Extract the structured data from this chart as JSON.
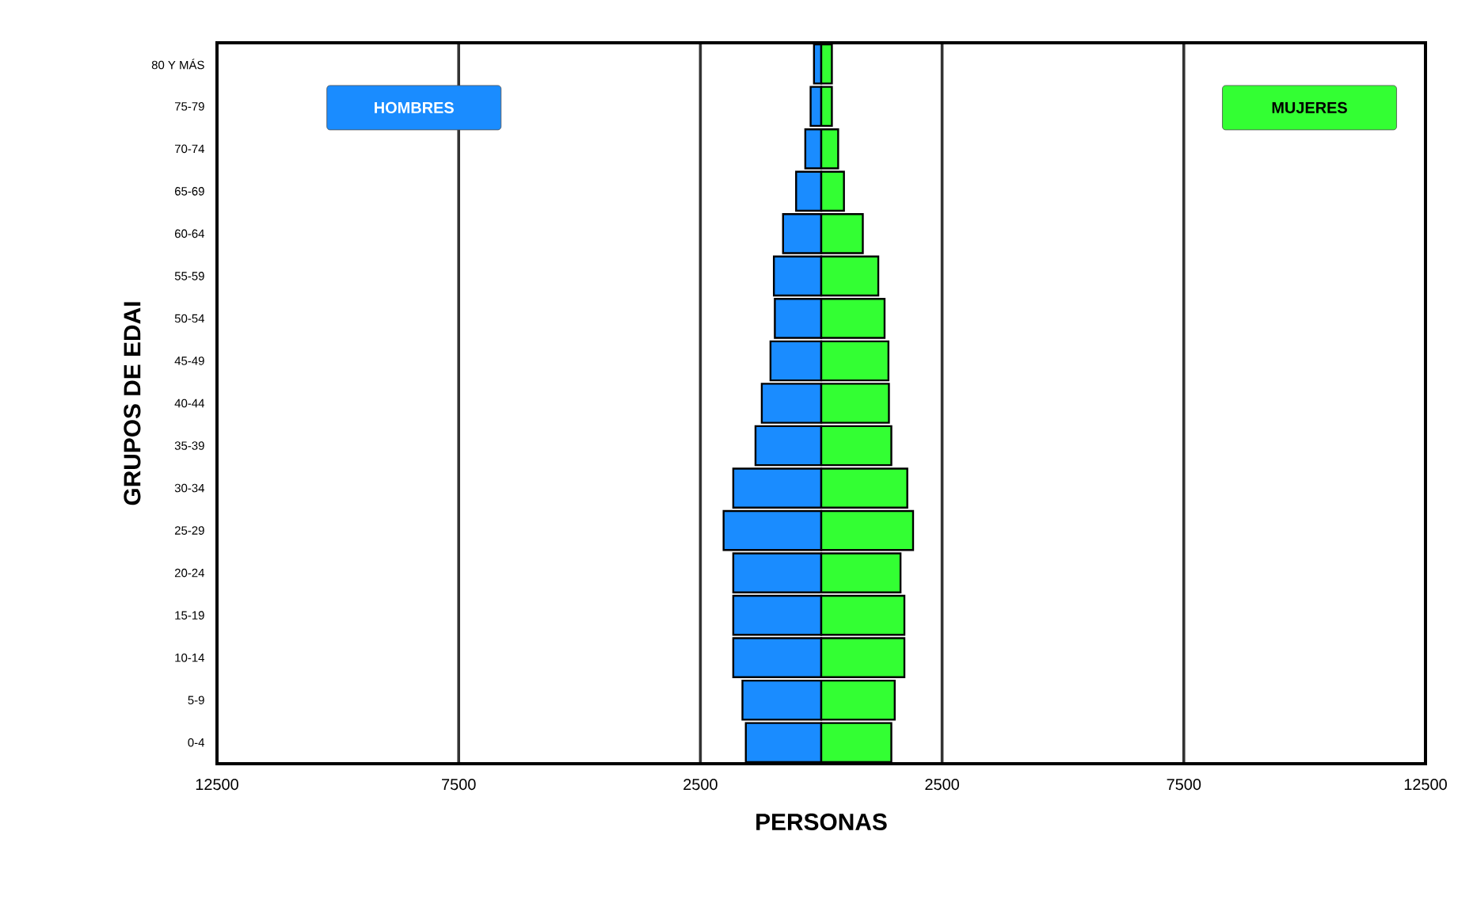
{
  "chart_data": {
    "type": "bar",
    "orientation": "horizontal",
    "xlabel": "PERSONAS",
    "ylabel": "GRUPOS DE EDAI",
    "categories": [
      "80 Y MÁS",
      "75-79",
      "70-74",
      "65-69",
      "60-64",
      "55-59",
      "50-54",
      "45-49",
      "40-44",
      "35-39",
      "30-34",
      "25-29",
      "20-24",
      "15-19",
      "10-14",
      "5-9",
      "0-4"
    ],
    "series": [
      {
        "name": "HOMBRES",
        "color": "#1a8cff",
        "values": [
          -150,
          -220,
          -330,
          -520,
          -790,
          -980,
          -960,
          -1050,
          -1230,
          -1360,
          -1820,
          -2020,
          -1820,
          -1820,
          -1820,
          -1630,
          -1560
        ]
      },
      {
        "name": "MUJERES",
        "color": "#33ff33",
        "values": [
          220,
          220,
          350,
          470,
          860,
          1180,
          1310,
          1390,
          1400,
          1450,
          1780,
          1900,
          1640,
          1720,
          1720,
          1520,
          1450
        ]
      }
    ],
    "xlim": [
      -12500,
      12500
    ],
    "xticks": [
      {
        "value": -12500,
        "label": "12500"
      },
      {
        "value": -7500,
        "label": "7500"
      },
      {
        "value": -2500,
        "label": "2500"
      },
      2500,
      7500,
      12500
    ],
    "grid": "x",
    "legend": "top",
    "stacked": true
  }
}
